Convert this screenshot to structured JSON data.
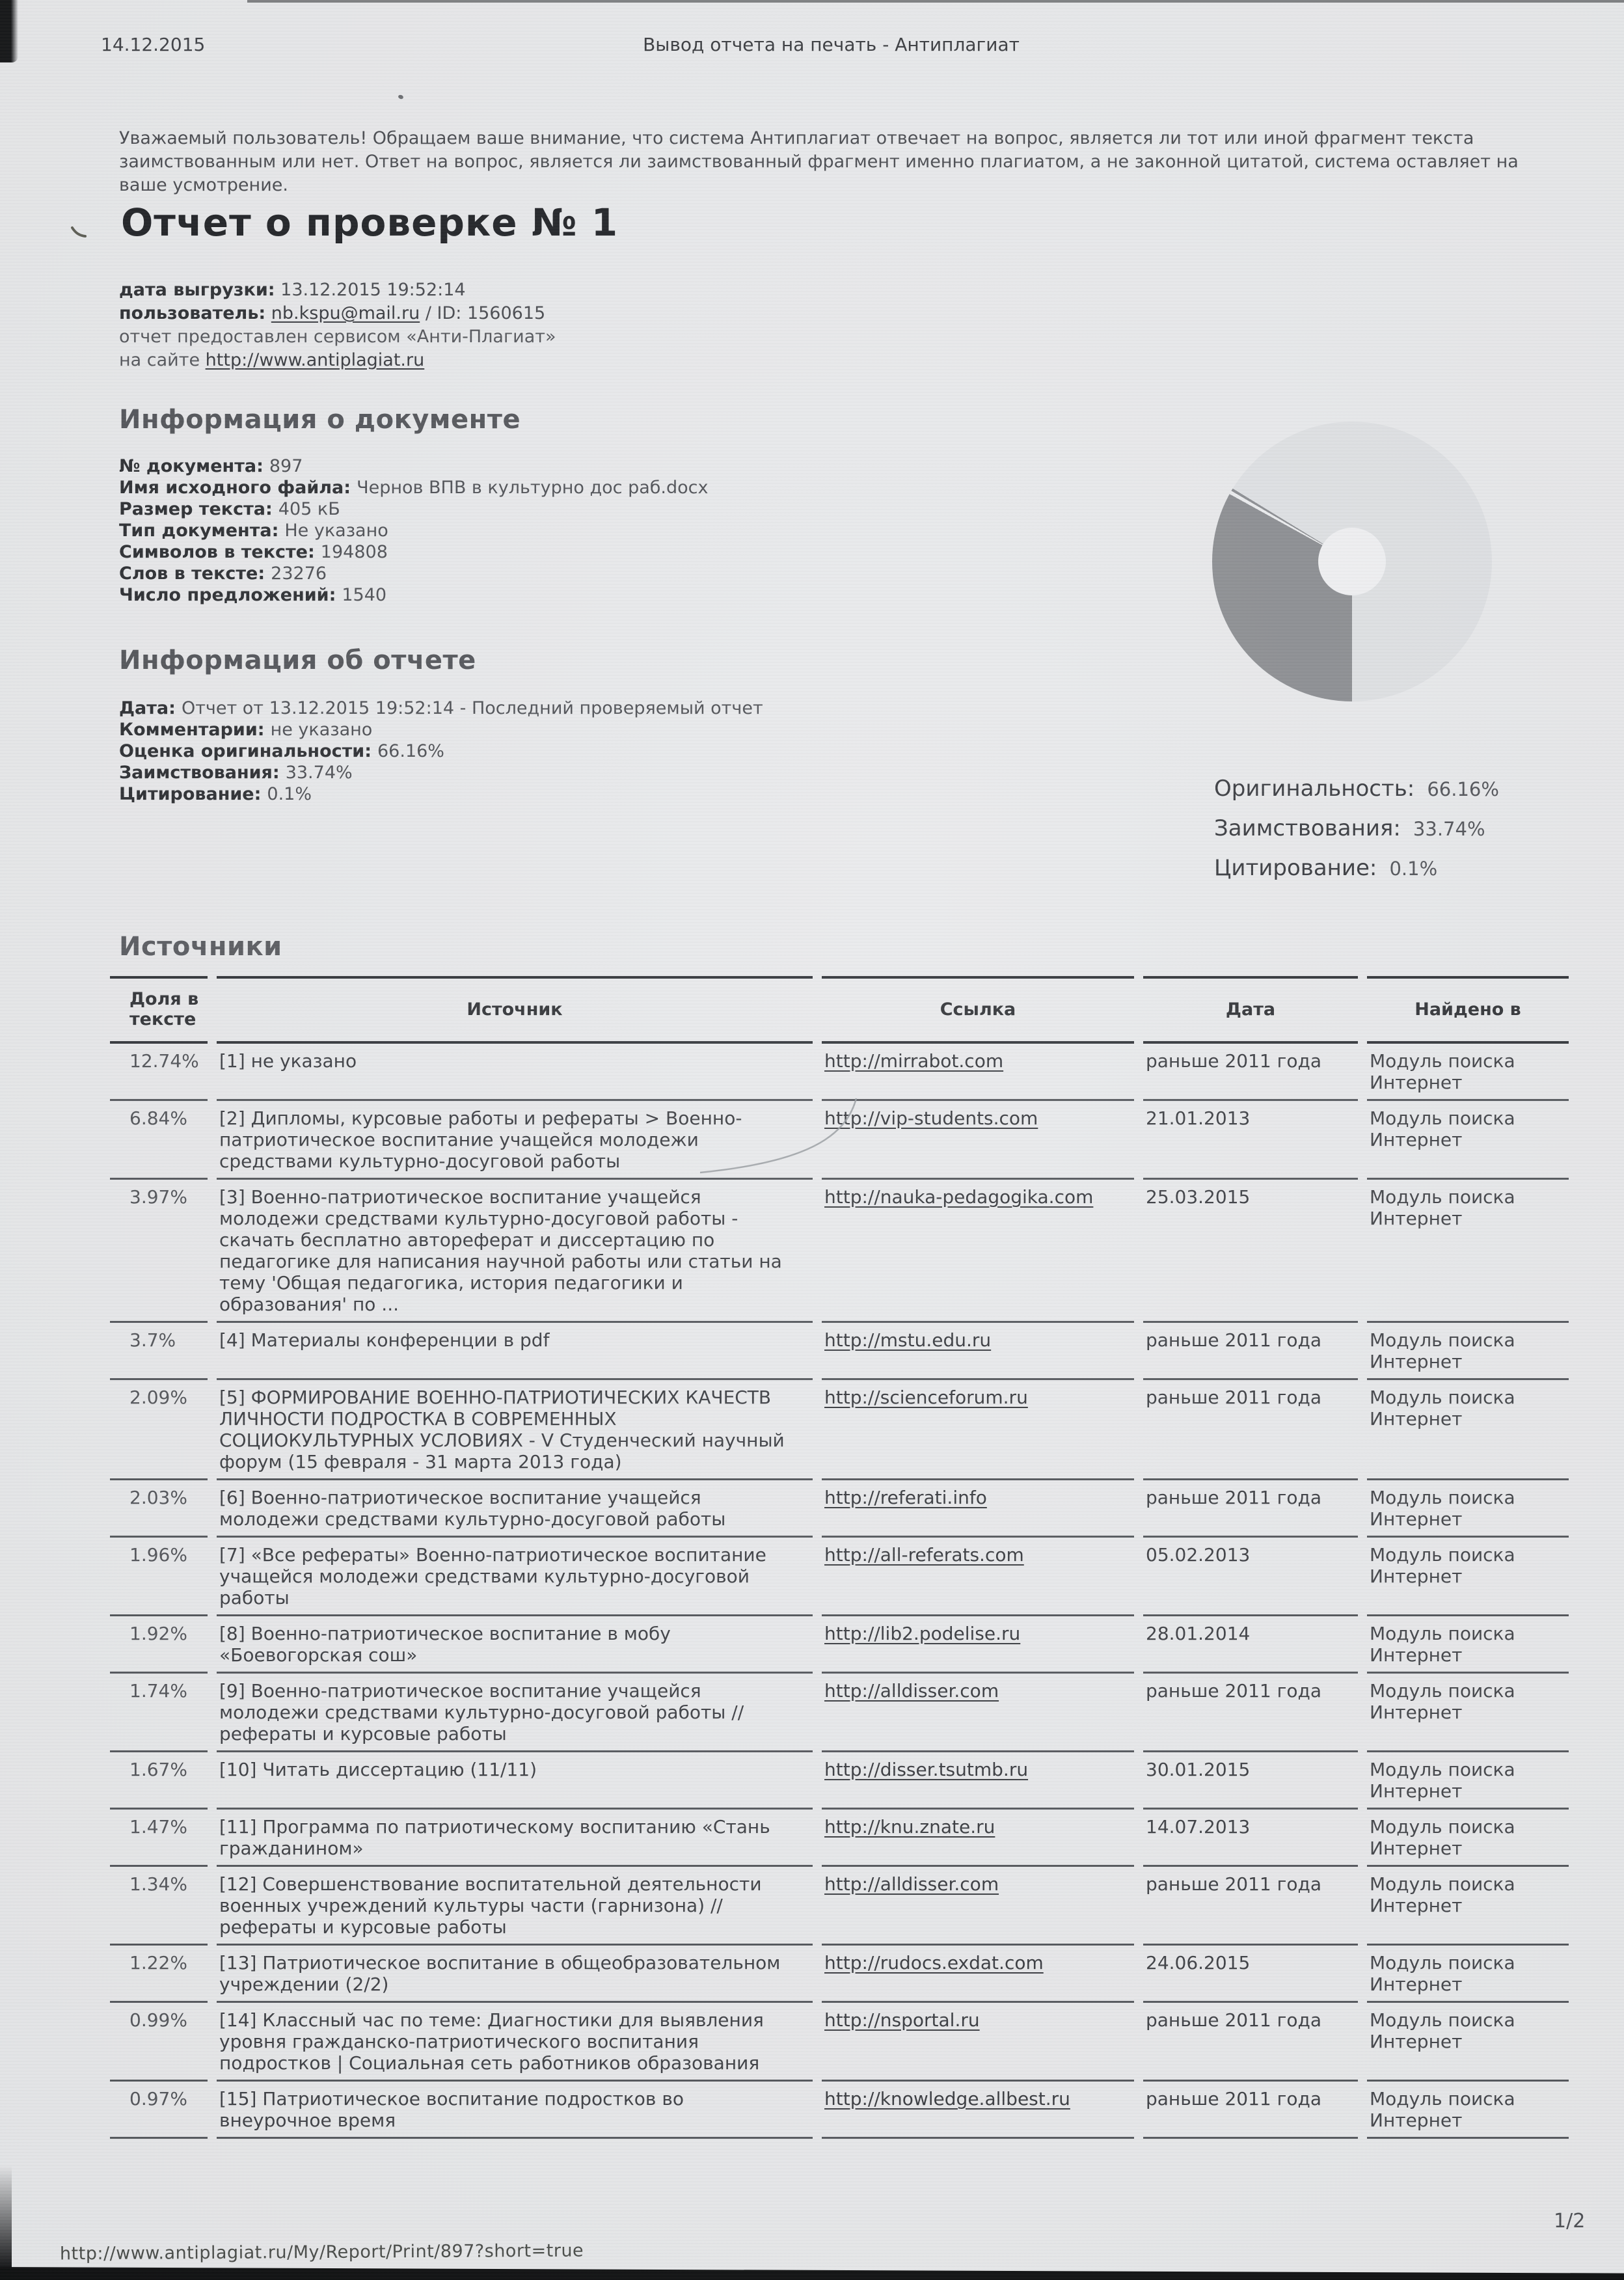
{
  "header": {
    "date": "14.12.2015",
    "title": "Вывод отчета на печать - Антиплагиат"
  },
  "notice": "Уважаемый пользователь! Обращаем ваше внимание, что система Антиплагиат отвечает на вопрос, является ли тот или иной фрагмент текста заимствованным или нет. Ответ на вопрос, является ли заимствованный фрагмент именно плагиатом, а не законной цитатой, система оставляет на ваше усмотрение.",
  "report": {
    "title": "Отчет о проверке № 1"
  },
  "meta": {
    "upload_label": "дата выгрузки:",
    "upload_value": "13.12.2015 19:52:14",
    "user_label": "пользователь:",
    "user_email": "nb.kspu@mail.ru",
    "user_suffix": "/ ID: 1560615",
    "service_line": "отчет предоставлен сервисом «Анти-Плагиат»",
    "site_prefix": "на сайте",
    "site_url": "http://www.antiplagiat.ru"
  },
  "doc_info": {
    "heading": "Информация о документе",
    "fields": [
      {
        "label": "№ документа:",
        "value": "897"
      },
      {
        "label": "Имя исходного файла:",
        "value": "Чернов ВПВ в культурно дос раб.docx"
      },
      {
        "label": "Размер текста:",
        "value": "405 кБ"
      },
      {
        "label": "Тип документа:",
        "value": "Не указано"
      },
      {
        "label": "Символов в тексте:",
        "value": "194808"
      },
      {
        "label": "Слов в тексте:",
        "value": "23276"
      },
      {
        "label": "Число предложений:",
        "value": "1540"
      }
    ]
  },
  "report_info": {
    "heading": "Информация об отчете",
    "fields": [
      {
        "label": "Дата:",
        "value": "Отчет от 13.12.2015 19:52:14 - Последний проверяемый отчет"
      },
      {
        "label": "Комментарии:",
        "value": "не указано"
      },
      {
        "label": "Оценка оригинальности:",
        "value": "66.16%"
      },
      {
        "label": "Заимствования:",
        "value": "33.74%"
      },
      {
        "label": "Цитирование:",
        "value": "0.1%"
      }
    ]
  },
  "chart": {
    "legend": [
      {
        "label": "Оригинальность:",
        "value": "66.16%"
      },
      {
        "label": "Заимствования:",
        "value": "33.74%"
      },
      {
        "label": "Цитирование:",
        "value": "0.1%"
      }
    ],
    "colors": {
      "original": "#dfe1e4",
      "borrowed": "#8d8f93",
      "gap": "#ecedef",
      "hole": "#f0f1f3"
    }
  },
  "chart_data": {
    "type": "pie",
    "labels": [
      "Оригинальность",
      "Заимствования",
      "Цитирование"
    ],
    "values": [
      66.16,
      33.74,
      0.1
    ],
    "title": "",
    "legend_position": "below-right",
    "donut": true,
    "start_angle_deg": 180,
    "direction": "clockwise-from-bottom"
  },
  "sources": {
    "heading": "Источники",
    "columns": [
      "Доля в тексте",
      "Источник",
      "Ссылка",
      "Дата",
      "Найдено в"
    ],
    "rows": [
      {
        "share": "12.74%",
        "source": "[1] не указано",
        "url": "http://mirrabot.com",
        "date": "раньше 2011 года",
        "found": "Модуль поиска Интернет"
      },
      {
        "share": "6.84%",
        "source": "[2] Дипломы, курсовые работы и рефераты > Военно-патриотическое воспитание учащейся молодежи средствами культурно-досуговой работы",
        "url": "http://vip-students.com",
        "date": "21.01.2013",
        "found": "Модуль поиска Интернет"
      },
      {
        "share": "3.97%",
        "source": "[3] Военно-патриотическое воспитание учащейся молодежи средствами культурно-досуговой работы - скачать бесплатно автореферат и диссертацию по педагогике для написания научной работы или статьи на тему 'Общая педагогика, история педагогики и образования' по ...",
        "url": "http://nauka-pedagogika.com",
        "date": "25.03.2015",
        "found": "Модуль поиска Интернет"
      },
      {
        "share": "3.7%",
        "source": "[4] Материалы конференции в pdf",
        "url": "http://mstu.edu.ru",
        "date": "раньше 2011 года",
        "found": "Модуль поиска Интернет"
      },
      {
        "share": "2.09%",
        "source": "[5] ФОРМИРОВАНИЕ ВОЕННО-ПАТРИОТИЧЕСКИХ КАЧЕСТВ ЛИЧНОСТИ ПОДРОСТКА В СОВРЕМЕННЫХ СОЦИОКУЛЬТУРНЫХ УСЛОВИЯХ - V Студенческий научный форум (15 февраля - 31 марта 2013 года)",
        "url": "http://scienceforum.ru",
        "date": "раньше 2011 года",
        "found": "Модуль поиска Интернет"
      },
      {
        "share": "2.03%",
        "source": "[6] Военно-патриотическое воспитание учащейся молодежи средствами культурно-досуговой работы",
        "url": "http://referati.info",
        "date": "раньше 2011 года",
        "found": "Модуль поиска Интернет"
      },
      {
        "share": "1.96%",
        "source": "[7] «Все рефераты» Военно-патриотическое воспитание учащейся молодежи средствами культурно-досуговой работы",
        "url": "http://all-referats.com",
        "date": "05.02.2013",
        "found": "Модуль поиска Интернет"
      },
      {
        "share": "1.92%",
        "source": "[8] Военно-патриотическое воспитание в мобу «Боевогорская сош»",
        "url": "http://lib2.podelise.ru",
        "date": "28.01.2014",
        "found": "Модуль поиска Интернет"
      },
      {
        "share": "1.74%",
        "source": "[9] Военно-патриотическое воспитание учащейся молодежи средствами культурно-досуговой работы // рефераты и курсовые работы",
        "url": "http://alldisser.com",
        "date": "раньше 2011 года",
        "found": "Модуль поиска Интернет"
      },
      {
        "share": "1.67%",
        "source": "[10] Читать диссертацию (11/11)",
        "url": "http://disser.tsutmb.ru",
        "date": "30.01.2015",
        "found": "Модуль поиска Интернет"
      },
      {
        "share": "1.47%",
        "source": "[11] Программа по патриотическому воспитанию «Стань гражданином»",
        "url": "http://knu.znate.ru",
        "date": "14.07.2013",
        "found": "Модуль поиска Интернет"
      },
      {
        "share": "1.34%",
        "source": "[12] Совершенствование воспитательной деятельности военных учреждений культуры части (гарнизона) // рефераты и курсовые работы",
        "url": "http://alldisser.com",
        "date": "раньше 2011 года",
        "found": "Модуль поиска Интернет"
      },
      {
        "share": "1.22%",
        "source": "[13] Патриотическое воспитание в общеобразовательном учреждении (2/2)",
        "url": "http://rudocs.exdat.com",
        "date": "24.06.2015",
        "found": "Модуль поиска Интернет"
      },
      {
        "share": "0.99%",
        "source": "[14] Классный час по теме: Диагностики для выявления уровня гражданско-патриотического воспитания подростков | Социальная сеть работников образования",
        "url": "http://nsportal.ru",
        "date": "раньше 2011 года",
        "found": "Модуль поиска Интернет"
      },
      {
        "share": "0.97%",
        "source": "[15] Патриотическое воспитание подростков во внеурочное время",
        "url": "http://knowledge.allbest.ru",
        "date": "раньше 2011 года",
        "found": "Модуль поиска Интернет"
      }
    ]
  },
  "footer": {
    "url": "http://www.antiplagiat.ru/My/Report/Print/897?short=true",
    "page": "1/2"
  }
}
